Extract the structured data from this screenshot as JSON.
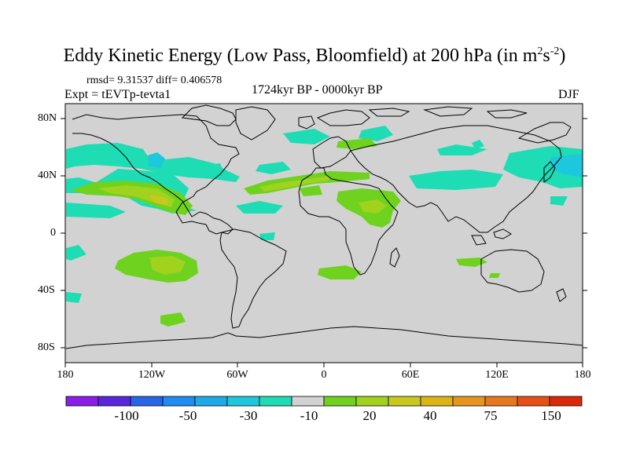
{
  "title": {
    "main": "Eddy Kinetic Energy (Low Pass, Bloomfield) at 200 hPa (in m",
    "exp1": "2",
    "unit_s": "s",
    "exp2": "-2",
    "close": ")"
  },
  "stats": "rmsd= 9.31537 diff= 0.406578",
  "experiment": "Expt = tEVTp-tevta1",
  "period": "1724kyr BP - 0000kyr BP",
  "season": "DJF",
  "y_axis_labels": [
    "80N",
    "40N",
    "0",
    "40S",
    "80S"
  ],
  "x_axis_labels": [
    "180",
    "120W",
    "60W",
    "0",
    "60E",
    "120E",
    "180"
  ],
  "colorbar": {
    "colors": [
      "#8a1ee6",
      "#5a28dc",
      "#2864e6",
      "#1e8cf0",
      "#1eaae6",
      "#1ec8dc",
      "#1edcb4",
      "#d2d2d2",
      "#6ed21e",
      "#a0d21e",
      "#c8c81e",
      "#dcb414",
      "#e6961e",
      "#e6781e",
      "#e65014",
      "#dc280a"
    ],
    "labels": [
      "-100",
      "-50",
      "-30",
      "-10",
      "20",
      "40",
      "75",
      "150"
    ]
  },
  "map_colors": {
    "ocean": "#d2d2d2",
    "coast": "#000000"
  }
}
